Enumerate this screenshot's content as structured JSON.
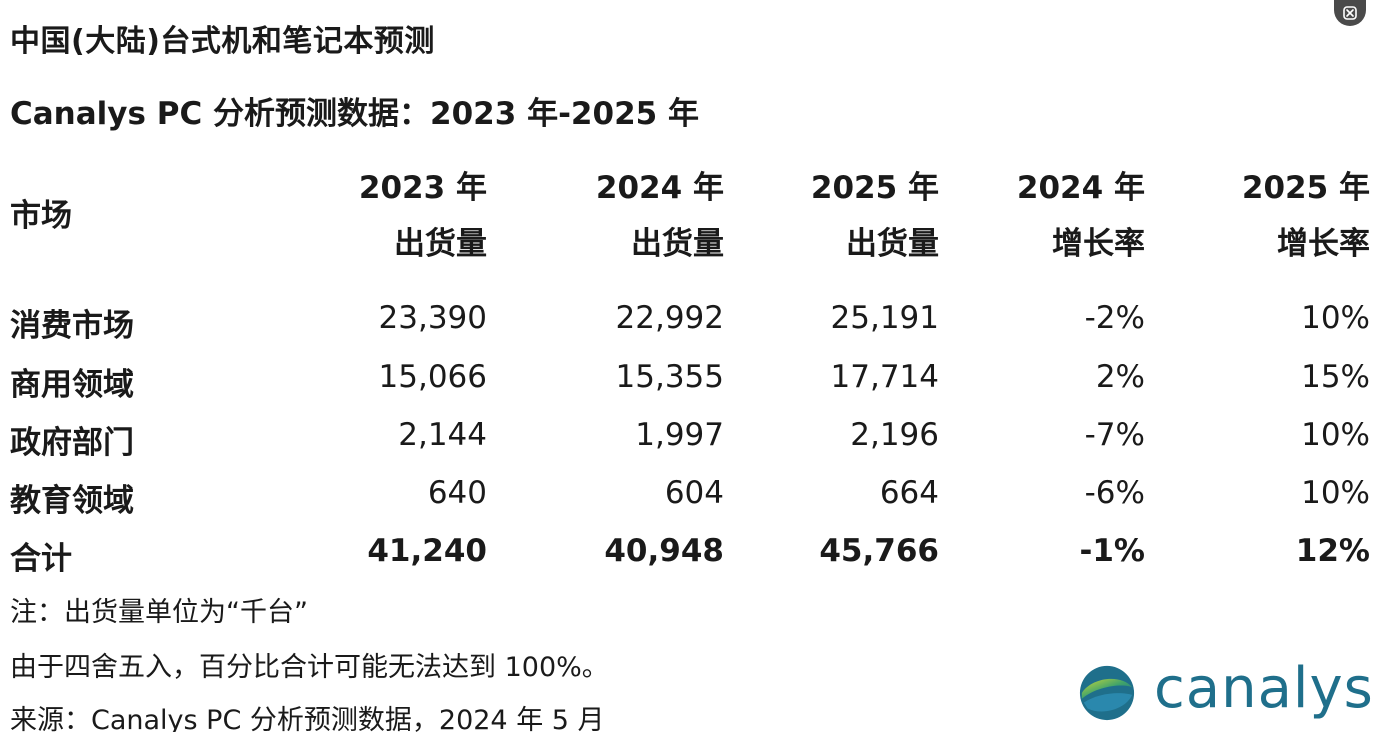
{
  "title": "中国(大陆)台式机和笔记本预测",
  "subtitle": "Canalys PC 分析预测数据：2023 年-2025 年",
  "table": {
    "market_header": "市场",
    "columns": [
      {
        "line1": "2023 年",
        "line2": "出货量"
      },
      {
        "line1": "2024 年",
        "line2": "出货量"
      },
      {
        "line1": "2025 年",
        "line2": "出货量"
      },
      {
        "line1": "2024 年",
        "line2": "增长率"
      },
      {
        "line1": "2025 年",
        "line2": "增长率"
      }
    ],
    "rows": [
      {
        "label": "消费市场",
        "v1": "23,390",
        "v2": "22,992",
        "v3": "25,191",
        "v4": "-2%",
        "v5": "10%"
      },
      {
        "label": "商用领域",
        "v1": "15,066",
        "v2": "15,355",
        "v3": "17,714",
        "v4": "2%",
        "v5": "15%"
      },
      {
        "label": "政府部门",
        "v1": "2,144",
        "v2": "1,997",
        "v3": "2,196",
        "v4": "-7%",
        "v5": "10%"
      },
      {
        "label": "教育领域",
        "v1": "640",
        "v2": "604",
        "v3": "664",
        "v4": "-6%",
        "v5": "10%"
      }
    ],
    "total": {
      "label": "合计",
      "v1": "41,240",
      "v2": "40,948",
      "v3": "45,766",
      "v4": "-1%",
      "v5": "12%"
    }
  },
  "notes": {
    "unit": "注：出货量单位为“千台”",
    "rounding": "由于四舍五入，百分比合计可能无法达到 100%。",
    "source": "来源：Canalys PC 分析预测数据，2024 年 5 月"
  },
  "logo": {
    "text": "canalys",
    "icon": "canalys-globe-icon"
  },
  "close_icon": "close-icon",
  "colors": {
    "text": "#1a1a1a",
    "brand": "#1f6f8b"
  }
}
